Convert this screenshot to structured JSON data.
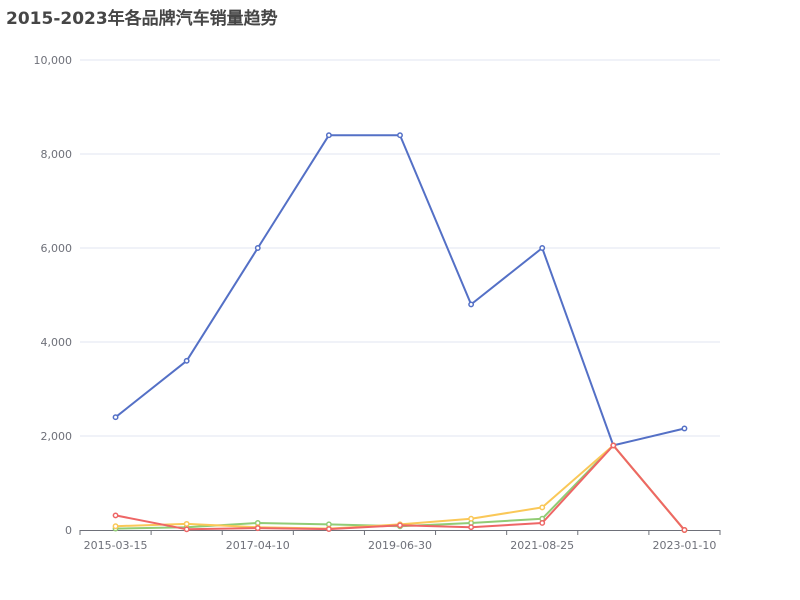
{
  "chart_data": {
    "type": "line",
    "title": "2015-2023年各品牌汽车销量趋势",
    "x": [
      "2015-03-15",
      "2016-03-28",
      "2017-04-10",
      "2018-05-20",
      "2019-06-30",
      "2020-07-25",
      "2021-08-25",
      "2022-04-15",
      "2023-01-10"
    ],
    "x_tick_labels": [
      "2015-03-15",
      "2017-04-10",
      "2019-06-30",
      "2021-08-25",
      "2023-01-10"
    ],
    "y_tick_labels": [
      "0",
      "2,000",
      "4,000",
      "6,000",
      "8,000",
      "10,000"
    ],
    "ylim": [
      0,
      10000
    ],
    "grid": true,
    "series": [
      {
        "color": "#5470c6",
        "values": [
          2400,
          3600,
          6000,
          8400,
          8400,
          4800,
          6000,
          1800,
          2160
        ]
      },
      {
        "color": "#91cc75",
        "values": [
          30,
          60,
          150,
          120,
          80,
          150,
          240,
          1800,
          0
        ]
      },
      {
        "color": "#fac858",
        "values": [
          80,
          130,
          60,
          30,
          120,
          240,
          480,
          1800,
          0
        ]
      },
      {
        "color": "#ee6666",
        "values": [
          310,
          15,
          40,
          20,
          100,
          60,
          150,
          1800,
          0
        ]
      }
    ]
  }
}
